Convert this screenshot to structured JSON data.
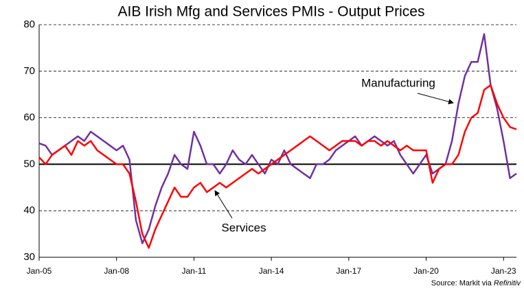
{
  "chart_data": {
    "type": "line",
    "title": "AIB Irish Mfg and Services PMIs - Output Prices",
    "categories": [
      "Jan-05",
      null,
      null,
      null,
      null,
      null,
      null,
      null,
      null,
      null,
      null,
      null,
      "Jan-08",
      null,
      null,
      null,
      null,
      null,
      null,
      null,
      null,
      null,
      null,
      null,
      "Jan-11",
      null,
      null,
      null,
      null,
      null,
      null,
      null,
      null,
      null,
      null,
      null,
      "Jan-14",
      null,
      null,
      null,
      null,
      null,
      null,
      null,
      null,
      null,
      null,
      null,
      "Jan-17",
      null,
      null,
      null,
      null,
      null,
      null,
      null,
      null,
      null,
      null,
      null,
      "Jan-20",
      null,
      null,
      null,
      null,
      null,
      null,
      null,
      null,
      null,
      null,
      null,
      "Jan-23",
      null,
      null
    ],
    "series": [
      {
        "name": "Manufacturing",
        "color": "#7030a0",
        "values": [
          54.5,
          54,
          52,
          53,
          54,
          55,
          56,
          55,
          57,
          56,
          55,
          54,
          53,
          54,
          51,
          38,
          33,
          36,
          41,
          45,
          48,
          52,
          50,
          49,
          57,
          54,
          50,
          50,
          48,
          50,
          53,
          51,
          50,
          52,
          50,
          48,
          51,
          50,
          53,
          50,
          49,
          48,
          47,
          50,
          50,
          51,
          53,
          54,
          55,
          56,
          54,
          55,
          56,
          55,
          54,
          55,
          52,
          50,
          48,
          50,
          52,
          48,
          49,
          50,
          55,
          63,
          69,
          72,
          72,
          78,
          67,
          62,
          55,
          47,
          48
        ]
      },
      {
        "name": "Services",
        "color": "#ff0000",
        "values": [
          51.5,
          50,
          52,
          53,
          54,
          52,
          55,
          54,
          55,
          53,
          52,
          51,
          50,
          50,
          48,
          42,
          35,
          32,
          36,
          39,
          42,
          45,
          43,
          43,
          45,
          46,
          44,
          45,
          46,
          45,
          46,
          47,
          48,
          49,
          48,
          49,
          50,
          51,
          52,
          53,
          54,
          55,
          56,
          55,
          54,
          53,
          54,
          55,
          55,
          55,
          54,
          55,
          55,
          54,
          55,
          54,
          53,
          54,
          53,
          53,
          53,
          46,
          49,
          50,
          50,
          52,
          57,
          60,
          61,
          66,
          67,
          63,
          60,
          58,
          57.5
        ]
      }
    ],
    "ylim": [
      30,
      80
    ],
    "yticks": [
      30,
      40,
      50,
      60,
      70,
      80
    ],
    "grid": true,
    "ref_line": 50,
    "annotations": [
      "Manufacturing",
      "Services"
    ],
    "source": "Source: Markit via ",
    "source_italic": "Refinitiv"
  }
}
